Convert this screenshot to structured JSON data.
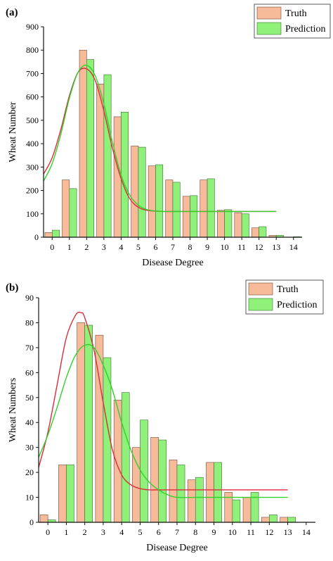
{
  "colors": {
    "truth_fill": "#f7bb99",
    "truth_stroke": "#6b4a3a",
    "prediction_fill": "#8ff07a",
    "prediction_stroke": "#3e6e35",
    "truth_curve": "#dd2b3a",
    "prediction_curve": "#2fd12a",
    "axis": "#111111"
  },
  "chart_data": [
    {
      "panel_label": "(a)",
      "type": "bar",
      "xlabel": "Disease Degree",
      "ylabel": "Wheat Number",
      "categories": [
        "0",
        "1",
        "2",
        "3",
        "4",
        "5",
        "6",
        "7",
        "8",
        "9",
        "10",
        "11",
        "12",
        "13",
        "14"
      ],
      "ylim": [
        0,
        900
      ],
      "yticks": [
        0,
        100,
        200,
        300,
        400,
        500,
        600,
        700,
        800,
        900
      ],
      "legend_position": "top-right",
      "series": [
        {
          "name": "Truth",
          "values": [
            20,
            245,
            800,
            655,
            515,
            390,
            305,
            245,
            175,
            245,
            115,
            105,
            40,
            8,
            0
          ]
        },
        {
          "name": "Prediction",
          "values": [
            30,
            208,
            760,
            695,
            535,
            385,
            310,
            235,
            178,
            250,
            118,
            100,
            45,
            8,
            2
          ]
        }
      ],
      "fit_curves": [
        {
          "series": "Truth",
          "x": [
            -0.5,
            0,
            0.5,
            1,
            1.5,
            2,
            2.5,
            3,
            3.5,
            4,
            4.5,
            5,
            5.5,
            6,
            6.5,
            7,
            8,
            9,
            10,
            11,
            12,
            13
          ],
          "y": [
            270,
            340,
            460,
            605,
            705,
            720,
            670,
            540,
            380,
            250,
            165,
            128,
            115,
            112,
            110,
            110,
            110,
            110,
            110,
            110,
            110,
            110
          ]
        },
        {
          "series": "Prediction",
          "x": [
            -0.5,
            0,
            0.5,
            1,
            1.5,
            2,
            2.5,
            3,
            3.5,
            4,
            4.5,
            5,
            5.5,
            6,
            6.5,
            7,
            8,
            9,
            10,
            11,
            12,
            13
          ],
          "y": [
            240,
            315,
            440,
            595,
            705,
            735,
            690,
            570,
            405,
            265,
            180,
            137,
            118,
            112,
            110,
            110,
            110,
            110,
            110,
            110,
            110,
            110
          ]
        }
      ]
    },
    {
      "panel_label": "(b)",
      "type": "bar",
      "xlabel": "Disease Degree",
      "ylabel": "Wheat Numbers",
      "categories": [
        "0",
        "1",
        "2",
        "3",
        "4",
        "5",
        "6",
        "7",
        "8",
        "9",
        "10",
        "11",
        "12",
        "13",
        "14"
      ],
      "ylim": [
        0,
        90
      ],
      "yticks": [
        0,
        10,
        20,
        30,
        40,
        50,
        60,
        70,
        80,
        90
      ],
      "legend_position": "top-right",
      "series": [
        {
          "name": "Truth",
          "values": [
            3,
            23,
            80,
            75,
            49,
            30,
            34,
            25,
            17,
            24,
            12,
            10,
            2,
            2,
            0
          ]
        },
        {
          "name": "Prediction",
          "values": [
            1,
            23,
            79,
            66,
            52,
            41,
            33,
            23,
            18,
            24,
            9,
            12,
            3,
            2,
            0
          ]
        }
      ],
      "fit_curves": [
        {
          "series": "Truth",
          "x": [
            -0.5,
            0,
            0.5,
            1,
            1.5,
            1.8,
            2,
            2.5,
            3,
            3.5,
            4,
            4.5,
            5,
            5.5,
            6,
            7,
            8,
            9,
            10,
            11,
            12,
            13
          ],
          "y": [
            22,
            36,
            55,
            74,
            83,
            84,
            82,
            69,
            48,
            29,
            19,
            15,
            13.5,
            13,
            13,
            13,
            13,
            13,
            13,
            13,
            13,
            13
          ]
        },
        {
          "series": "Prediction",
          "x": [
            -0.5,
            0,
            0.5,
            1,
            1.5,
            2,
            2.5,
            3,
            3.5,
            4,
            4.5,
            5,
            5.5,
            6,
            6.5,
            7,
            8,
            9,
            10,
            11,
            12,
            13
          ],
          "y": [
            26,
            35,
            46,
            58,
            67,
            71,
            70,
            63,
            53,
            40,
            29,
            21,
            16,
            13,
            11,
            10,
            10,
            10,
            10,
            10,
            10,
            10
          ]
        }
      ]
    }
  ]
}
